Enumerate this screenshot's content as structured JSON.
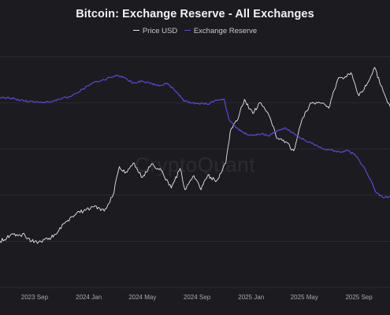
{
  "chart_data": {
    "type": "line",
    "title": "Bitcoin: Exchange Reserve - All Exchanges",
    "legend": {
      "placement": "top-center",
      "entries": [
        {
          "name": "Price USD",
          "color": "#e6e6e6"
        },
        {
          "name": "Exchange Reserve",
          "color": "#5a49d6"
        }
      ]
    },
    "watermark": "CryptoQuant",
    "grid": {
      "horizontal": true,
      "vertical": false
    },
    "x_range": [
      "2023-06-15",
      "2025-11-10"
    ],
    "x_ticks": [
      {
        "date": "2023-09-01",
        "label": "2023 Sep"
      },
      {
        "date": "2024-01-01",
        "label": "2024 Jan"
      },
      {
        "date": "2024-05-01",
        "label": "2024 May"
      },
      {
        "date": "2024-09-01",
        "label": "2024 Sep"
      },
      {
        "date": "2025-01-01",
        "label": "2025 Jan"
      },
      {
        "date": "2025-05-01",
        "label": "2025 May"
      },
      {
        "date": "2025-09-01",
        "label": "2025 Sep"
      }
    ],
    "series": [
      {
        "name": "Price USD",
        "color": "#e6e6e6",
        "axis_range": [
          0,
          130000
        ],
        "x": [
          "2023-06-15",
          "2023-07-15",
          "2023-08-10",
          "2023-08-25",
          "2023-09-10",
          "2023-10-01",
          "2023-10-20",
          "2023-11-10",
          "2023-12-05",
          "2023-12-25",
          "2024-01-15",
          "2024-02-05",
          "2024-02-25",
          "2024-03-10",
          "2024-03-25",
          "2024-04-10",
          "2024-05-01",
          "2024-05-20",
          "2024-06-10",
          "2024-07-05",
          "2024-07-25",
          "2024-08-05",
          "2024-08-25",
          "2024-09-10",
          "2024-09-25",
          "2024-10-15",
          "2024-11-05",
          "2024-11-15",
          "2024-12-05",
          "2024-12-17",
          "2025-01-05",
          "2025-01-20",
          "2025-02-10",
          "2025-02-28",
          "2025-03-15",
          "2025-04-07",
          "2025-04-25",
          "2025-05-15",
          "2025-06-05",
          "2025-06-25",
          "2025-07-15",
          "2025-07-30",
          "2025-08-14",
          "2025-09-01",
          "2025-09-20",
          "2025-10-06",
          "2025-10-25",
          "2025-11-10"
        ],
        "values": [
          26000,
          30000,
          29500,
          26000,
          25500,
          27000,
          30000,
          37000,
          42000,
          43500,
          46000,
          43000,
          52000,
          68000,
          65000,
          70000,
          62000,
          69000,
          67000,
          56000,
          67000,
          55000,
          63000,
          55000,
          63000,
          60000,
          70000,
          88000,
          97000,
          106000,
          98000,
          104000,
          97000,
          84000,
          83000,
          77000,
          94000,
          104000,
          104000,
          101000,
          117000,
          118000,
          121000,
          108000,
          115000,
          124000,
          111000,
          102000
        ]
      },
      {
        "name": "Exchange Reserve",
        "color": "#5a49d6",
        "axis_range": [
          0,
          3600000
        ],
        "x": [
          "2023-06-15",
          "2023-07-01",
          "2023-07-20",
          "2023-08-10",
          "2023-08-30",
          "2023-09-20",
          "2023-10-10",
          "2023-10-30",
          "2023-11-20",
          "2023-12-10",
          "2023-12-25",
          "2024-01-10",
          "2024-01-25",
          "2024-02-10",
          "2024-03-01",
          "2024-03-20",
          "2024-04-10",
          "2024-05-01",
          "2024-05-20",
          "2024-06-10",
          "2024-06-25",
          "2024-07-10",
          "2024-08-01",
          "2024-08-20",
          "2024-09-05",
          "2024-09-25",
          "2024-10-15",
          "2024-11-01",
          "2024-11-12",
          "2024-11-25",
          "2024-12-10",
          "2024-12-25",
          "2025-01-10",
          "2025-01-25",
          "2025-02-10",
          "2025-03-01",
          "2025-03-20",
          "2025-04-10",
          "2025-05-01",
          "2025-05-20",
          "2025-06-10",
          "2025-06-25",
          "2025-07-10",
          "2025-07-25",
          "2025-08-10",
          "2025-08-25",
          "2025-09-10",
          "2025-09-25",
          "2025-10-10",
          "2025-10-25",
          "2025-11-10"
        ],
        "values": [
          2960000,
          2960000,
          2940000,
          2910000,
          2890000,
          2880000,
          2900000,
          2940000,
          2980000,
          3050000,
          3130000,
          3190000,
          3210000,
          3250000,
          3310000,
          3280000,
          3190000,
          3220000,
          3180000,
          3150000,
          3190000,
          3100000,
          2920000,
          2880000,
          2870000,
          2860000,
          2920000,
          2940000,
          2620000,
          2520000,
          2430000,
          2380000,
          2380000,
          2400000,
          2360000,
          2450000,
          2490000,
          2390000,
          2300000,
          2250000,
          2170000,
          2150000,
          2130000,
          2120000,
          2130000,
          2050000,
          1900000,
          1700000,
          1480000,
          1400000,
          1420000
        ]
      }
    ]
  }
}
